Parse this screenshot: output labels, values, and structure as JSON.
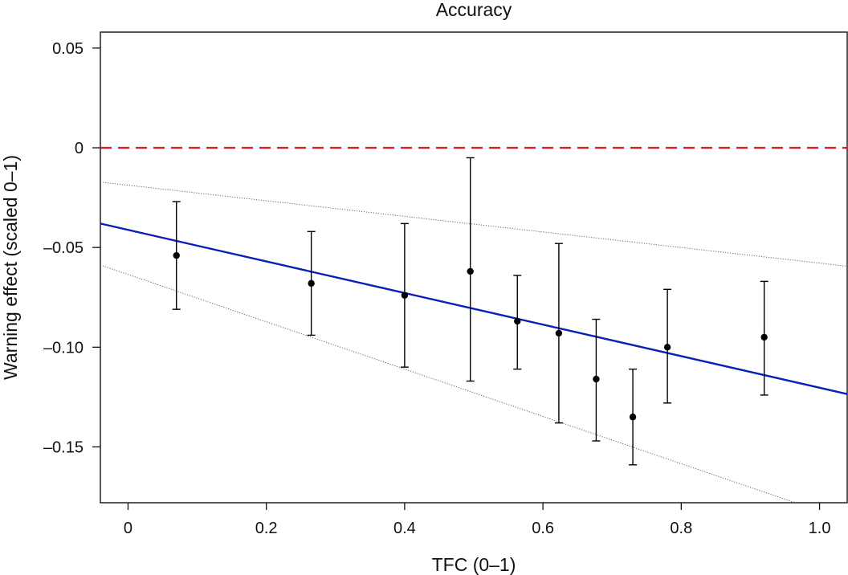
{
  "chart_data": {
    "type": "scatter",
    "title": "Accuracy",
    "xlabel": "TFC (0–1)",
    "ylabel": "Warning effect (scaled 0–1)",
    "xlim": [
      -0.04,
      1.04
    ],
    "ylim": [
      -0.178,
      0.058
    ],
    "x_ticks": [
      0,
      0.2,
      0.4,
      0.6,
      0.8,
      1.0
    ],
    "x_tick_labels": [
      "0",
      "0.2",
      "0.4",
      "0.6",
      "0.8",
      "1.0"
    ],
    "y_ticks": [
      0.05,
      0,
      -0.05,
      -0.1,
      -0.15
    ],
    "y_tick_labels": [
      "0.05",
      "0",
      "–0.05",
      "–0.10",
      "–0.15"
    ],
    "grid": false,
    "points": [
      {
        "x": 0.07,
        "y": -0.054,
        "lo": -0.081,
        "hi": -0.027
      },
      {
        "x": 0.265,
        "y": -0.068,
        "lo": -0.094,
        "hi": -0.042
      },
      {
        "x": 0.4,
        "y": -0.074,
        "lo": -0.11,
        "hi": -0.038
      },
      {
        "x": 0.495,
        "y": -0.062,
        "lo": -0.117,
        "hi": -0.005
      },
      {
        "x": 0.563,
        "y": -0.087,
        "lo": -0.111,
        "hi": -0.064
      },
      {
        "x": 0.623,
        "y": -0.093,
        "lo": -0.138,
        "hi": -0.048
      },
      {
        "x": 0.677,
        "y": -0.116,
        "lo": -0.147,
        "hi": -0.086
      },
      {
        "x": 0.73,
        "y": -0.135,
        "lo": -0.159,
        "hi": -0.111
      },
      {
        "x": 0.78,
        "y": -0.1,
        "lo": -0.128,
        "hi": -0.071
      },
      {
        "x": 0.92,
        "y": -0.095,
        "lo": -0.124,
        "hi": -0.067
      }
    ],
    "fit_line": {
      "x": [
        -0.04,
        1.04
      ],
      "y": [
        -0.038,
        -0.1235
      ]
    },
    "ci_upper": {
      "x": [
        -0.04,
        1.04
      ],
      "y": [
        -0.0172,
        -0.0594
      ]
    },
    "ci_lower": {
      "x": [
        -0.04,
        0.965
      ],
      "y": [
        -0.0588,
        -0.178
      ]
    },
    "reference_line": {
      "y": 0
    },
    "colors": {
      "points": "#000000",
      "fit_line": "#0a1fb5",
      "reference_line": "#d42020",
      "ci_lines": "#666666",
      "axes": "#111111"
    }
  }
}
